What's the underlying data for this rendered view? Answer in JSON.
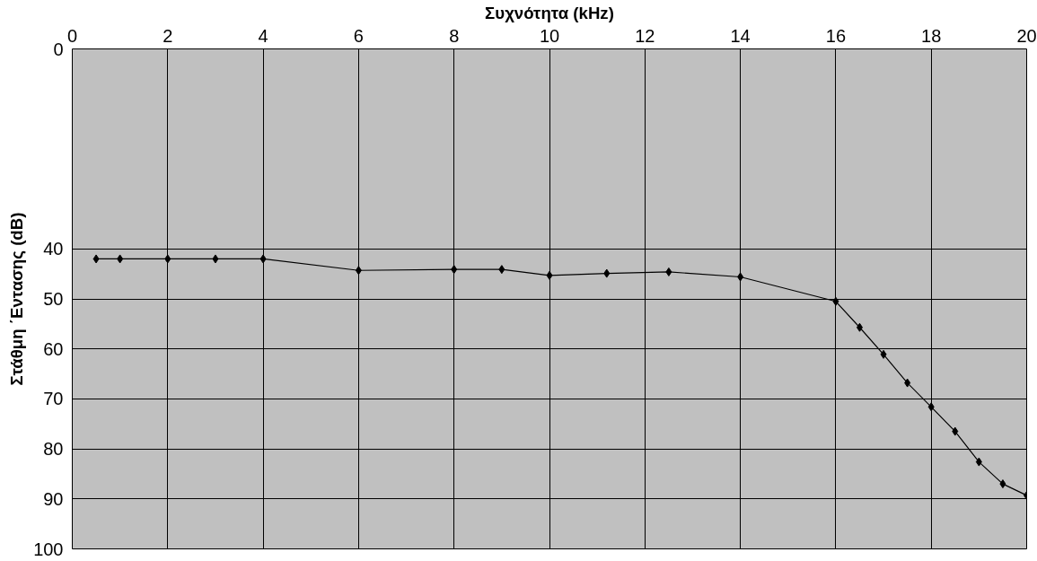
{
  "chart_data": {
    "type": "line",
    "xlabel": "Συχνότητα (kHz)",
    "ylabel": "Στάθμη ΄Εντασης (dB)",
    "x": [
      0.5,
      1,
      2,
      3,
      4,
      6,
      8,
      9,
      10,
      11.2,
      12.5,
      14,
      16,
      16.5,
      17,
      17.5,
      18,
      18.5,
      19,
      19.5,
      20
    ],
    "series": [
      {
        "color": "#000000",
        "values": [
          42,
          42,
          42,
          42,
          42,
          44.3,
          44.1,
          44.1,
          45.3,
          44.9,
          44.6,
          45.6,
          50.5,
          55.7,
          61.1,
          66.8,
          71.6,
          76.5,
          82.6,
          87.0,
          89.3
        ]
      }
    ],
    "xlim": [
      0,
      20
    ],
    "xticks": [
      0,
      2,
      4,
      6,
      8,
      10,
      12,
      14,
      16,
      18,
      20
    ],
    "ylim": [
      100,
      0
    ],
    "yticks": [
      0,
      40,
      50,
      60,
      70,
      80,
      90,
      100
    ],
    "grid": true,
    "marker": "diamond",
    "line_style": "solid"
  }
}
